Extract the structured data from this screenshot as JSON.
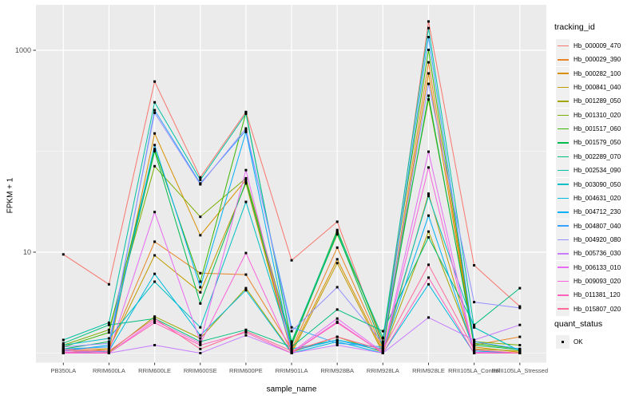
{
  "chart_data": {
    "type": "line",
    "xlabel": "sample_name",
    "ylabel": "FPKM + 1",
    "y_scale": "log10",
    "ylim": [
      0.8,
      2820
    ],
    "grid": true,
    "legend_position": "right",
    "y_ticks": [
      {
        "label": "10",
        "value": 10
      },
      {
        "label": "1000",
        "value": 1000
      }
    ],
    "y_minor_breaks": [
      1,
      100
    ],
    "categories": [
      "PB350LA",
      "RRIM600LA",
      "RRIM600LE",
      "RRIM600SE",
      "RRIM600PE",
      "RRIM901LA",
      "RRIM928BA",
      "RRIM928LA",
      "RRIM928LE",
      "RRII105LA_Control",
      "RRII105LA_Stressed"
    ],
    "legend_title": "tracking_id",
    "legend2_title": "quant_status",
    "legend2_items": [
      {
        "label": "OK"
      }
    ],
    "series": [
      {
        "id": "Hb_000009_470",
        "color": "#F8766D",
        "values": [
          9.5,
          4.8,
          490,
          55,
          245,
          8.3,
          20,
          1.2,
          1930,
          7.4,
          2.9
        ]
      },
      {
        "id": "Hb_000029_390",
        "color": "#E88526",
        "values": [
          1.1,
          1.1,
          12.7,
          6.2,
          6,
          1.1,
          11.1,
          1.1,
          760,
          1.2,
          1.45
        ]
      },
      {
        "id": "Hb_000282_100",
        "color": "#D89000",
        "values": [
          1.05,
          1.05,
          150,
          14.7,
          52,
          1.05,
          8.5,
          1.05,
          590,
          1.15,
          1.02
        ]
      },
      {
        "id": "Hb_000841_040",
        "color": "#C09B00",
        "values": [
          1,
          1.1,
          9.3,
          4,
          48,
          1,
          7.8,
          1,
          38,
          1.05,
          1
        ]
      },
      {
        "id": "Hb_001289_050",
        "color": "#A3A500",
        "values": [
          1.05,
          1.02,
          2.3,
          1.4,
          4.4,
          1.02,
          1.45,
          1.02,
          16,
          1.1,
          1.05
        ]
      },
      {
        "id": "Hb_001310_020",
        "color": "#7CAE00",
        "values": [
          1.2,
          1.7,
          71,
          22.4,
          54,
          1.3,
          15,
          1.42,
          325,
          1.3,
          1.2
        ]
      },
      {
        "id": "Hb_001517_060",
        "color": "#39B600",
        "values": [
          1.15,
          1.6,
          105,
          5.1,
          240,
          1.25,
          16.6,
          1.3,
          1010,
          1.25,
          1.1
        ]
      },
      {
        "id": "Hb_001579_050",
        "color": "#00BB4E",
        "values": [
          1.1,
          1.3,
          100,
          3.1,
          50,
          1.2,
          15.5,
          1.15,
          355,
          1.2,
          1.08
        ]
      },
      {
        "id": "Hb_002289_070",
        "color": "#00BF7D",
        "values": [
          1.25,
          1.9,
          2.2,
          1.3,
          1.7,
          1.15,
          2.7,
          1.65,
          14,
          1.9,
          4.4
        ]
      },
      {
        "id": "Hb_002534_090",
        "color": "#00C1A3",
        "values": [
          1.35,
          2,
          305,
          52,
          235,
          1.3,
          16,
          1.4,
          1660,
          1.8,
          1.05
        ]
      },
      {
        "id": "Hb_003090_050",
        "color": "#00BFC4",
        "values": [
          1.2,
          1.4,
          5.1,
          1.8,
          31.5,
          1.1,
          1.35,
          1.1,
          36,
          1.8,
          1.05
        ]
      },
      {
        "id": "Hb_004631_020",
        "color": "#00BAE0",
        "values": [
          1,
          1.05,
          6.1,
          1.5,
          4.2,
          1,
          1.3,
          1,
          4.8,
          1,
          1
        ]
      },
      {
        "id": "Hb_004712_230",
        "color": "#00B0F6",
        "values": [
          1.05,
          1.2,
          115,
          4.5,
          155,
          1.05,
          1.35,
          1.05,
          23,
          1.05,
          1
        ]
      },
      {
        "id": "Hb_004807_040",
        "color": "#35A2FF",
        "values": [
          1.1,
          1.15,
          255,
          48,
          160,
          1.8,
          1.25,
          1.15,
          1350,
          1.3,
          1.1
        ]
      },
      {
        "id": "Hb_004920_080",
        "color": "#9590FF",
        "values": [
          1.15,
          1.25,
          240,
          47,
          168,
          1.65,
          4.5,
          1.25,
          465,
          3.2,
          2.8
        ]
      },
      {
        "id": "Hb_005736_030",
        "color": "#C77CFF",
        "values": [
          1,
          1,
          1.2,
          1,
          1.5,
          1,
          1.2,
          1,
          2.25,
          1.35,
          1.9
        ]
      },
      {
        "id": "Hb_006133_010",
        "color": "#E76BF3",
        "values": [
          1.05,
          1.02,
          25,
          1.3,
          65,
          1.02,
          2.2,
          1.02,
          99,
          1.02,
          1
        ]
      },
      {
        "id": "Hb_009093_020",
        "color": "#FA62DB",
        "values": [
          1,
          1,
          2.1,
          1.25,
          9.8,
          1,
          2.05,
          1,
          69,
          1,
          1
        ]
      },
      {
        "id": "Hb_011381_120",
        "color": "#FF62BC",
        "values": [
          1.02,
          1,
          2,
          1.2,
          1.6,
          1,
          2,
          1,
          5.6,
          1,
          1
        ]
      },
      {
        "id": "Hb_015807_020",
        "color": "#FF6A98",
        "values": [
          1.08,
          1.05,
          2.2,
          1.1,
          1.65,
          1.05,
          1.45,
          1.08,
          7.5,
          1.08,
          1
        ]
      }
    ]
  },
  "colors": {
    "panel_bg": "#EBEBEB",
    "grid": "#FFFFFF",
    "figure_bg": "#FFFFFF",
    "point": "#000000",
    "axis_text": "#4D4D4D",
    "tick": "#333333",
    "legend_key_bg": "#F0F0F0"
  }
}
